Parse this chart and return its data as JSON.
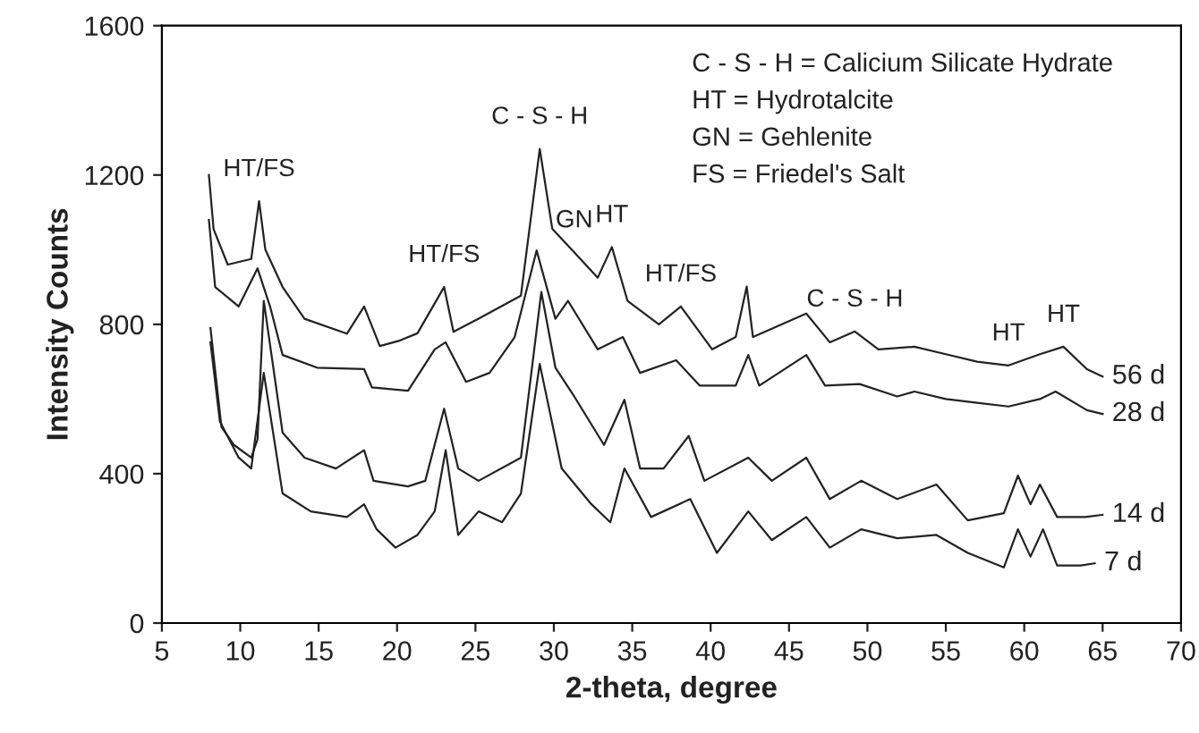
{
  "chart_data": {
    "type": "line",
    "xlabel": "2-theta, degree",
    "ylabel": "Intensity Counts",
    "xlim": [
      5,
      70
    ],
    "ylim": [
      0,
      1600
    ],
    "xticks": [
      5,
      10,
      15,
      20,
      25,
      30,
      35,
      40,
      45,
      50,
      55,
      60,
      65,
      70
    ],
    "yticks": [
      0,
      400,
      800,
      1200,
      1600
    ],
    "grid": false,
    "legend": false,
    "marker": "none",
    "line_style": "solid",
    "series": [
      {
        "name": "56 d",
        "color": "#222222",
        "x": [
          8.0,
          8.3,
          9.2,
          10.7,
          11.2,
          11.6,
          12.7,
          14.1,
          16.8,
          17.9,
          18.9,
          20.2,
          21.3,
          23.0,
          23.6,
          25.2,
          27.9,
          29.1,
          29.9,
          31.3,
          32.8,
          33.7,
          34.7,
          36.7,
          38.1,
          40.1,
          41.6,
          42.3,
          42.7,
          46.1,
          47.6,
          49.2,
          50.7,
          53.0,
          55.0,
          57.0,
          59.0,
          61.0,
          62.5,
          64.0,
          65.0
        ],
        "values": [
          1200,
          1055,
          960,
          975,
          1130,
          1000,
          900,
          815,
          775,
          848,
          742,
          757,
          776,
          900,
          780,
          815,
          877,
          1270,
          1056,
          993,
          925,
          1007,
          863,
          800,
          848,
          733,
          766,
          901,
          766,
          829,
          752,
          781,
          733,
          740,
          720,
          700,
          690,
          720,
          740,
          680,
          660
        ]
      },
      {
        "name": "28 d",
        "color": "#222222",
        "x": [
          8.0,
          8.4,
          9.9,
          11.1,
          11.9,
          12.7,
          14.9,
          17.9,
          18.4,
          20.7,
          22.4,
          23.1,
          24.4,
          25.9,
          27.5,
          28.9,
          30.1,
          30.9,
          32.8,
          34.4,
          35.5,
          37.8,
          39.3,
          41.6,
          42.4,
          43.1,
          46.1,
          47.3,
          49.5,
          51.9,
          53.0,
          55.0,
          57.0,
          59.0,
          61.0,
          62.0,
          64.0,
          65.0
        ],
        "values": [
          1080,
          900,
          848,
          950,
          848,
          718,
          684,
          680,
          631,
          622,
          733,
          752,
          646,
          670,
          766,
          998,
          815,
          863,
          733,
          766,
          670,
          704,
          636,
          636,
          718,
          636,
          718,
          636,
          640,
          607,
          620,
          600,
          590,
          580,
          600,
          620,
          570,
          560
        ]
      },
      {
        "name": "14 d",
        "color": "#222222",
        "x": [
          8.1,
          8.8,
          9.6,
          10.7,
          11.1,
          11.5,
          12.7,
          14.1,
          16.1,
          17.9,
          18.5,
          20.7,
          21.8,
          23.0,
          23.9,
          25.2,
          27.9,
          29.2,
          30.1,
          31.3,
          33.2,
          34.5,
          35.5,
          37.0,
          38.6,
          39.6,
          42.4,
          43.9,
          46.1,
          47.6,
          49.6,
          51.9,
          54.4,
          56.4,
          58.7,
          59.6,
          60.4,
          61.0,
          62.1,
          63.9,
          65.0
        ],
        "values": [
          790,
          525,
          477,
          443,
          492,
          863,
          510,
          443,
          414,
          463,
          381,
          366,
          381,
          574,
          414,
          381,
          443,
          887,
          684,
          607,
          477,
          598,
          414,
          414,
          501,
          381,
          443,
          381,
          443,
          332,
          381,
          332,
          371,
          275,
          294,
          395,
          318,
          371,
          284,
          284,
          290
        ]
      },
      {
        "name": "7 d",
        "color": "#222222",
        "x": [
          8.1,
          8.7,
          9.9,
          10.7,
          11.5,
          12.7,
          14.5,
          16.8,
          17.9,
          18.7,
          19.9,
          21.3,
          22.4,
          23.1,
          23.9,
          25.2,
          26.7,
          27.9,
          29.1,
          30.5,
          32.4,
          33.6,
          34.5,
          36.2,
          38.7,
          40.4,
          42.4,
          43.9,
          46.1,
          47.6,
          49.6,
          51.9,
          54.4,
          56.4,
          58.7,
          59.6,
          60.4,
          61.2,
          62.1,
          63.6,
          64.5
        ],
        "values": [
          752,
          540,
          443,
          414,
          670,
          347,
          299,
          284,
          318,
          251,
          202,
          236,
          299,
          463,
          236,
          299,
          270,
          347,
          694,
          414,
          318,
          270,
          414,
          284,
          332,
          188,
          299,
          222,
          284,
          202,
          251,
          227,
          236,
          188,
          149,
          251,
          178,
          251,
          154,
          154,
          160
        ]
      }
    ],
    "annotations": [
      {
        "text": "HT/FS",
        "x": 11.2,
        "y": 1130
      },
      {
        "text": "HT/FS",
        "x": 23.0,
        "y": 900
      },
      {
        "text": "C - S - H",
        "x": 29.1,
        "y": 1270
      },
      {
        "text": "GN",
        "x": 31.3,
        "y": 993
      },
      {
        "text": "HT",
        "x": 33.7,
        "y": 1007
      },
      {
        "text": "HT/FS",
        "x": 38.1,
        "y": 848
      },
      {
        "text": "C - S - H",
        "x": 49.2,
        "y": 781
      },
      {
        "text": "HT",
        "x": 59.0,
        "y": 690
      },
      {
        "text": "HT",
        "x": 62.5,
        "y": 740
      },
      "C - S - H = Calicium Silicate Hydrate",
      "HT = Hydrotalcite",
      "GN = Gehlenite",
      "FS = Friedel's Salt"
    ]
  }
}
